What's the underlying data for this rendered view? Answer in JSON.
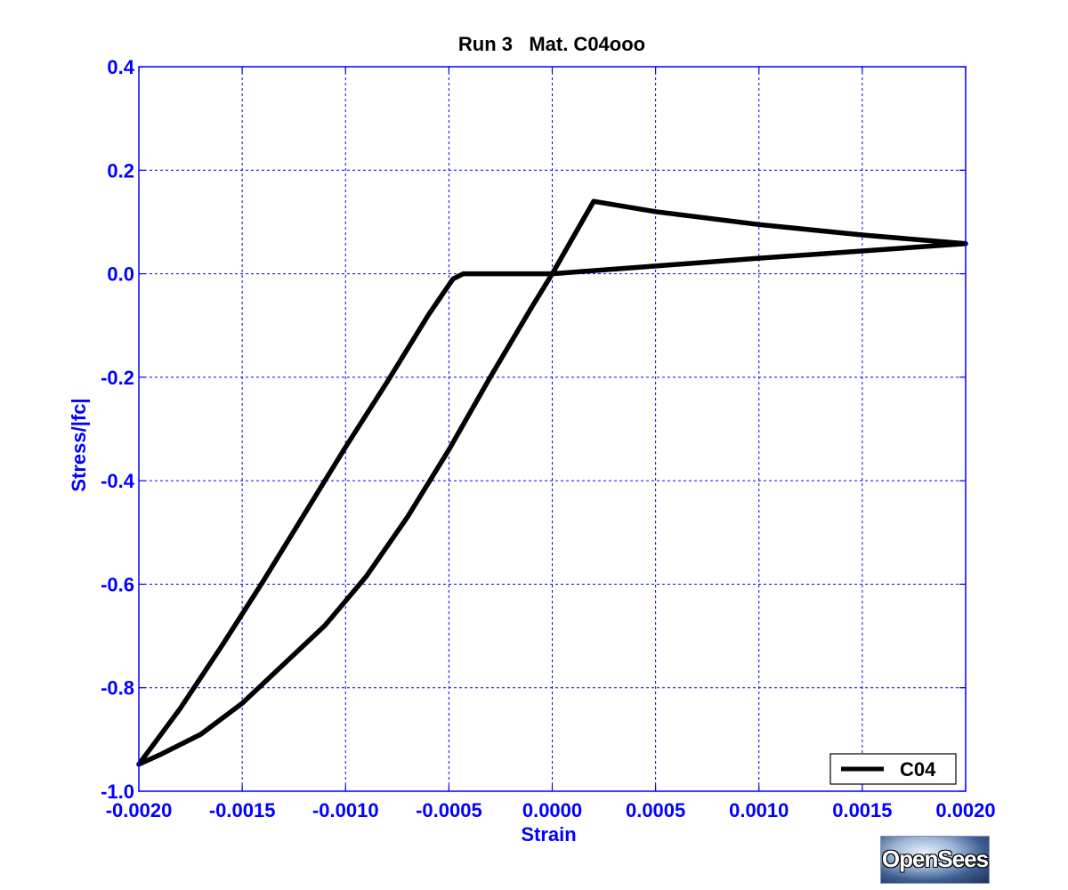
{
  "chart_data": {
    "type": "line",
    "title": "Run 3   Mat. C04ooo",
    "xlabel": "Strain",
    "ylabel": "Stress/|fc|",
    "xlim": [
      -0.002,
      0.002
    ],
    "ylim": [
      -1.0,
      0.4
    ],
    "xticks": [
      "-0.0020",
      "-0.0015",
      "-0.0010",
      "-0.0005",
      "0.0000",
      "0.0005",
      "0.0010",
      "0.0015",
      "0.0020"
    ],
    "xtick_values": [
      -0.002,
      -0.0015,
      -0.001,
      -0.0005,
      0.0,
      0.0005,
      0.001,
      0.0015,
      0.002
    ],
    "yticks": [
      "0.4",
      "0.2",
      "0.0",
      "-0.2",
      "-0.4",
      "-0.6",
      "-0.8",
      "-1.0"
    ],
    "ytick_values": [
      0.4,
      0.2,
      0.0,
      -0.2,
      -0.4,
      -0.6,
      -0.8,
      -1.0
    ],
    "grid": true,
    "legend_position": "bottom-right",
    "series": [
      {
        "name": "C04",
        "color": "#000000",
        "x": [
          0.0,
          0.0002,
          0.0005,
          0.001,
          0.0015,
          0.002,
          0.0015,
          0.001,
          0.0005,
          0.0,
          -0.00043,
          -0.00048,
          -0.0006,
          -0.0008,
          -0.001,
          -0.0012,
          -0.0014,
          -0.0016,
          -0.0018,
          -0.002,
          -0.0019,
          -0.0017,
          -0.0015,
          -0.0013,
          -0.0011,
          -0.0009,
          -0.0007,
          -0.0005,
          -0.0003,
          -0.0001,
          0.0,
          0.0001,
          0.0002
        ],
        "y": [
          0.0,
          0.14,
          0.12,
          0.095,
          0.075,
          0.058,
          0.044,
          0.03,
          0.015,
          0.0,
          0.0,
          -0.01,
          -0.08,
          -0.21,
          -0.335,
          -0.465,
          -0.595,
          -0.72,
          -0.84,
          -0.948,
          -0.93,
          -0.89,
          -0.83,
          -0.755,
          -0.68,
          -0.585,
          -0.47,
          -0.34,
          -0.2,
          -0.065,
          0.0,
          0.07,
          0.14
        ]
      }
    ]
  },
  "colors": {
    "axis": "#0000ff",
    "grid": "#0000ff",
    "text": "#000000",
    "line": "#000000"
  },
  "logo": {
    "text": "OpenSees"
  }
}
